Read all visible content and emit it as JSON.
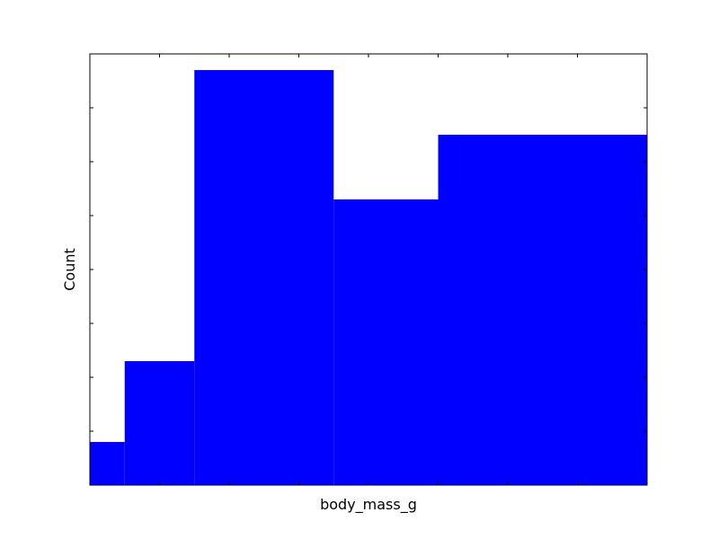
{
  "chart_data": {
    "type": "bar",
    "title": "",
    "xlabel": "body_mass_g",
    "ylabel": "Count",
    "bins": [
      {
        "index": 0,
        "count": 0.8
      },
      {
        "index": 1,
        "count": 2.3
      },
      {
        "index": 2,
        "count": 7.7
      },
      {
        "index": 3,
        "count": 5.3
      },
      {
        "index": 4,
        "count": 6.5
      }
    ],
    "bin_edges": [
      0,
      0.5,
      1.5,
      3.5,
      5.0,
      8.0
    ],
    "xlim": [
      0,
      8
    ],
    "ylim": [
      0,
      8
    ],
    "x_ticks": [
      0,
      1,
      2,
      3,
      4,
      5,
      6,
      7,
      8
    ],
    "y_ticks": [
      0,
      1,
      2,
      3,
      4,
      5,
      6,
      7,
      8
    ],
    "tick_labels_visible": false,
    "grid": false,
    "colors": {
      "bar": "#0000ff",
      "axes": "#000000",
      "background": "#ffffff"
    }
  }
}
